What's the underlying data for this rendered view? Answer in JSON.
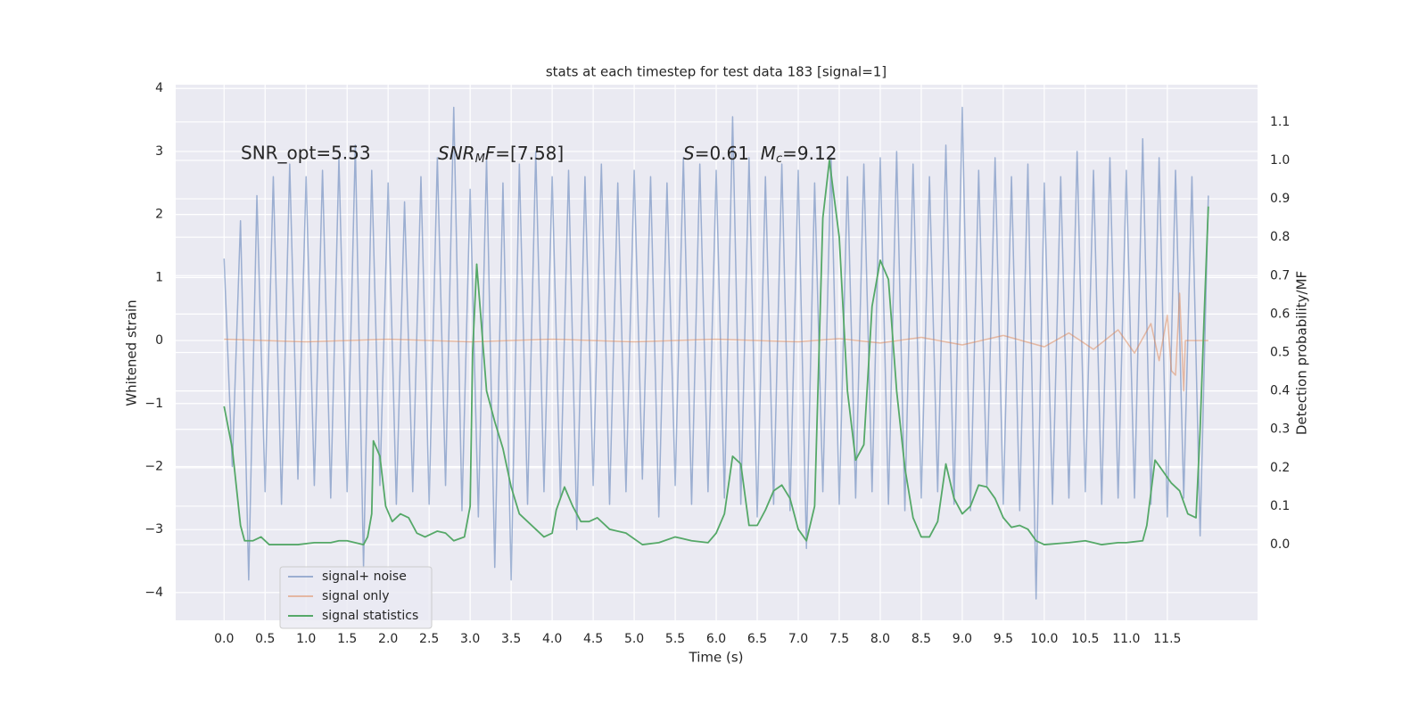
{
  "chart_data": {
    "type": "line",
    "title": "stats at each timestep for test data 183 [signal=1]",
    "xlabel": "Time (s)",
    "ylabel": "Whitened strain",
    "y2label": "Detection probability/MF",
    "annotations": [
      "SNR_opt=5.53",
      [
        "SNR",
        "M",
        "F",
        "=[7.58]"
      ],
      [
        "S",
        "=0.61  ",
        "M",
        "c",
        "=9.12"
      ]
    ],
    "grid": true,
    "legend": "lower left",
    "xlim": [
      -0.59,
      12.6
    ],
    "ylim": [
      -4.44,
      4.06
    ],
    "y2lim": [
      -0.197,
      1.197
    ],
    "xticks": [
      {
        "value": 0,
        "label": "0.0"
      },
      0.5,
      {
        "value": 1,
        "label": "1.0"
      },
      1.5,
      {
        "value": 2,
        "label": "2.0"
      },
      2.5,
      {
        "value": 3,
        "label": "3.0"
      },
      3.5,
      {
        "value": 4,
        "label": "4.0"
      },
      4.5,
      {
        "value": 5,
        "label": "5.0"
      },
      5.5,
      {
        "value": 6,
        "label": "6.0"
      },
      6.5,
      {
        "value": 7,
        "label": "7.0"
      },
      7.5,
      {
        "value": 8,
        "label": "8.0"
      },
      8.5,
      {
        "value": 9,
        "label": "9.0"
      },
      9.5,
      {
        "value": 10,
        "label": "10.0"
      },
      10.5,
      {
        "value": 11,
        "label": "11.0"
      },
      11.5
    ],
    "yticks": [
      {
        "value": -4,
        "label": "−4"
      },
      {
        "value": -3,
        "label": "−3"
      },
      {
        "value": -2,
        "label": "−2"
      },
      {
        "value": -1,
        "label": "−1"
      },
      0,
      1,
      2,
      3,
      4
    ],
    "y2ticks": [
      {
        "value": 0,
        "label": "0.0"
      },
      0.1,
      0.2,
      0.3,
      0.4,
      0.5,
      0.6,
      0.7,
      0.8,
      0.9,
      {
        "value": 1,
        "label": "1.0"
      },
      1.1
    ],
    "series": [
      {
        "name": "signal+ noise",
        "color": "#4c72b0",
        "opacity": 0.5,
        "x": [
          0,
          0.1,
          0.2,
          0.3,
          0.4,
          0.5,
          0.6,
          0.7,
          0.8,
          0.9,
          1,
          1.1,
          1.2,
          1.3,
          1.4,
          1.5,
          1.6,
          1.7,
          1.8,
          1.9,
          2,
          2.1,
          2.2,
          2.3,
          2.4,
          2.5,
          2.6,
          2.7,
          2.8,
          2.9,
          3,
          3.1,
          3.2,
          3.3,
          3.4,
          3.5,
          3.6,
          3.7,
          3.8,
          3.9,
          4,
          4.1,
          4.2,
          4.3,
          4.4,
          4.5,
          4.6,
          4.7,
          4.8,
          4.9,
          5,
          5.1,
          5.2,
          5.3,
          5.4,
          5.5,
          5.6,
          5.7,
          5.8,
          5.9,
          6,
          6.1,
          6.2,
          6.3,
          6.4,
          6.5,
          6.6,
          6.7,
          6.8,
          6.9,
          7,
          7.1,
          7.2,
          7.3,
          7.4,
          7.5,
          7.6,
          7.7,
          7.8,
          7.9,
          8,
          8.1,
          8.2,
          8.3,
          8.4,
          8.5,
          8.6,
          8.7,
          8.8,
          8.9,
          9,
          9.1,
          9.2,
          9.3,
          9.4,
          9.5,
          9.6,
          9.7,
          9.8,
          9.9,
          10,
          10.1,
          10.2,
          10.3,
          10.4,
          10.5,
          10.6,
          10.7,
          10.8,
          10.9,
          11,
          11.1,
          11.2,
          11.3,
          11.4,
          11.5,
          11.6,
          11.7,
          11.8,
          11.9,
          12
        ],
        "values": [
          1.3,
          -2.0,
          1.9,
          -3.8,
          2.3,
          -2.4,
          2.6,
          -2.6,
          2.8,
          -2.2,
          2.6,
          -2.3,
          2.7,
          -2.5,
          2.9,
          -2.4,
          3.1,
          -3.6,
          2.7,
          -2.3,
          2.5,
          -2.6,
          2.2,
          -2.4,
          2.6,
          -2.6,
          2.9,
          -2.3,
          3.7,
          -2.7,
          2.4,
          -2.8,
          2.9,
          -3.6,
          2.5,
          -3.8,
          2.8,
          -2.6,
          3.0,
          -2.4,
          2.6,
          -2.5,
          2.7,
          -3.0,
          2.6,
          -2.3,
          2.8,
          -2.6,
          2.5,
          -2.4,
          2.7,
          -2.2,
          2.6,
          -2.8,
          2.5,
          -2.3,
          2.9,
          -2.6,
          2.8,
          -2.4,
          2.7,
          -2.5,
          3.55,
          -2.6,
          2.9,
          -2.8,
          2.6,
          -2.6,
          2.8,
          -2.7,
          2.7,
          -3.3,
          2.5,
          -2.4,
          2.9,
          -2.6,
          2.6,
          -2.5,
          2.8,
          -2.4,
          2.9,
          -2.6,
          3.0,
          -2.7,
          2.8,
          -2.5,
          2.6,
          -2.4,
          3.1,
          -2.6,
          3.7,
          -2.7,
          2.7,
          -2.3,
          2.9,
          -2.6,
          2.6,
          -2.7,
          2.8,
          -4.1,
          2.5,
          -2.6,
          2.6,
          -2.5,
          3.0,
          -2.4,
          2.7,
          -2.6,
          2.9,
          -2.5,
          2.7,
          -2.5,
          3.2,
          -2.6,
          2.9,
          -2.8,
          2.7,
          -2.5,
          2.6,
          -3.1,
          2.3
        ]
      },
      {
        "name": "signal only",
        "color": "#dd8452",
        "opacity": 0.5,
        "x": [
          0,
          1,
          2,
          3,
          4,
          5,
          6,
          7,
          7.5,
          8,
          8.5,
          9,
          9.5,
          10,
          10.3,
          10.6,
          10.9,
          11.1,
          11.3,
          11.4,
          11.5,
          11.55,
          11.6,
          11.65,
          11.7,
          11.72,
          12
        ],
        "values": [
          0.02,
          -0.02,
          0.02,
          -0.02,
          0.02,
          -0.02,
          0.02,
          -0.02,
          0.03,
          -0.04,
          0.05,
          -0.07,
          0.08,
          -0.1,
          0.12,
          -0.14,
          0.17,
          -0.2,
          0.27,
          -0.32,
          0.4,
          -0.48,
          -0.55,
          0.75,
          -0.8,
          0,
          0
        ]
      },
      {
        "name": "signal statistics",
        "color": "#55a868",
        "axis": "y2",
        "x": [
          0,
          0.1,
          0.2,
          0.25,
          0.35,
          0.45,
          0.55,
          0.7,
          0.9,
          1.1,
          1.3,
          1.4,
          1.5,
          1.7,
          1.75,
          1.8,
          1.82,
          1.9,
          1.97,
          2.05,
          2.15,
          2.25,
          2.35,
          2.45,
          2.6,
          2.7,
          2.8,
          2.93,
          3.0,
          3.03,
          3.08,
          3.2,
          3.3,
          3.4,
          3.5,
          3.6,
          3.8,
          3.9,
          4.0,
          4.05,
          4.15,
          4.25,
          4.35,
          4.45,
          4.55,
          4.7,
          4.9,
          5.1,
          5.3,
          5.5,
          5.7,
          5.9,
          6.0,
          6.1,
          6.2,
          6.3,
          6.4,
          6.5,
          6.6,
          6.7,
          6.8,
          6.9,
          7.0,
          7.1,
          7.2,
          7.3,
          7.38,
          7.5,
          7.6,
          7.7,
          7.8,
          7.9,
          8.0,
          8.1,
          8.2,
          8.3,
          8.4,
          8.5,
          8.6,
          8.7,
          8.8,
          8.9,
          9.0,
          9.1,
          9.2,
          9.3,
          9.4,
          9.5,
          9.6,
          9.7,
          9.8,
          9.9,
          10.0,
          10.3,
          10.5,
          10.7,
          10.9,
          11.0,
          11.2,
          11.25,
          11.35,
          11.45,
          11.55,
          11.65,
          11.75,
          11.85,
          11.9,
          11.95,
          12.0
        ],
        "values": [
          0.36,
          0.25,
          0.05,
          0.01,
          0.01,
          0.02,
          0.0,
          0.0,
          0.0,
          0.005,
          0.005,
          0.01,
          0.01,
          0.0,
          0.02,
          0.08,
          0.27,
          0.23,
          0.1,
          0.06,
          0.08,
          0.07,
          0.03,
          0.02,
          0.035,
          0.03,
          0.01,
          0.02,
          0.1,
          0.5,
          0.73,
          0.4,
          0.32,
          0.25,
          0.15,
          0.08,
          0.04,
          0.02,
          0.03,
          0.09,
          0.15,
          0.1,
          0.06,
          0.06,
          0.07,
          0.04,
          0.03,
          0.0,
          0.005,
          0.02,
          0.01,
          0.005,
          0.03,
          0.08,
          0.23,
          0.21,
          0.05,
          0.05,
          0.09,
          0.14,
          0.155,
          0.12,
          0.04,
          0.01,
          0.1,
          0.85,
          1.0,
          0.8,
          0.4,
          0.22,
          0.26,
          0.62,
          0.74,
          0.69,
          0.4,
          0.2,
          0.07,
          0.02,
          0.02,
          0.06,
          0.21,
          0.12,
          0.08,
          0.1,
          0.155,
          0.15,
          0.12,
          0.07,
          0.045,
          0.05,
          0.04,
          0.01,
          0.0,
          0.005,
          0.01,
          0.0,
          0.005,
          0.005,
          0.01,
          0.05,
          0.22,
          0.19,
          0.16,
          0.14,
          0.08,
          0.07,
          0.3,
          0.6,
          0.88
        ]
      }
    ]
  }
}
